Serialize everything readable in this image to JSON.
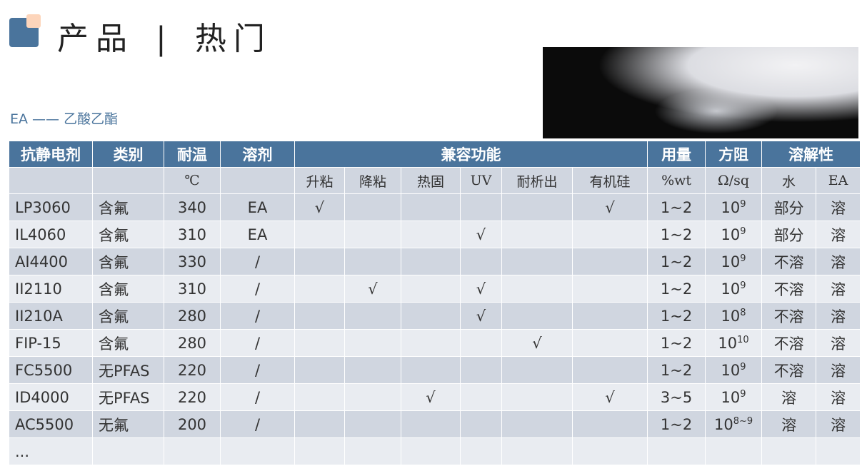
{
  "header": {
    "title_left": "产品",
    "separator": "|",
    "title_right": "热门",
    "note": "EA —— 乙酸乙酯"
  },
  "colors": {
    "accent": "#4a749c",
    "accent_light": "#fdd5bb"
  },
  "table": {
    "headers": [
      "抗静电剂",
      "类别",
      "耐温",
      "溶剂",
      "兼容功能",
      "用量",
      "方阻",
      "溶解性"
    ],
    "subheaders": [
      "",
      "",
      "℃",
      "",
      "升粘",
      "降粘",
      "热固",
      "UV",
      "耐析出",
      "有机硅",
      "%wt",
      "Ω/sq",
      "水",
      "EA"
    ],
    "rows": [
      [
        "LP3060",
        "含氟",
        "340",
        "EA",
        "√",
        "",
        "",
        "",
        "",
        "√",
        "1~2",
        "10",
        "9",
        "部分",
        "溶"
      ],
      [
        "IL4060",
        "含氟",
        "310",
        "EA",
        "",
        "",
        "",
        "√",
        "",
        "",
        "1~2",
        "10",
        "9",
        "部分",
        "溶"
      ],
      [
        "AI4400",
        "含氟",
        "330",
        "/",
        "",
        "",
        "",
        "",
        "",
        "",
        "1~2",
        "10",
        "9",
        "不溶",
        "溶"
      ],
      [
        "II2110",
        "含氟",
        "310",
        "/",
        "",
        "√",
        "",
        "√",
        "",
        "",
        "1~2",
        "10",
        "9",
        "不溶",
        "溶"
      ],
      [
        "II210A",
        "含氟",
        "280",
        "/",
        "",
        "",
        "",
        "√",
        "",
        "",
        "1~2",
        "10",
        "8",
        "不溶",
        "溶"
      ],
      [
        "FIP-15",
        "含氟",
        "280",
        "/",
        "",
        "",
        "",
        "",
        "√",
        "",
        "1~2",
        "10",
        "10",
        "不溶",
        "溶"
      ],
      [
        "FC5500",
        "无PFAS",
        "220",
        "/",
        "",
        "",
        "",
        "",
        "",
        "",
        "1~2",
        "10",
        "9",
        "不溶",
        "溶"
      ],
      [
        "ID4000",
        "无PFAS",
        "220",
        "/",
        "",
        "",
        "√",
        "",
        "",
        "√",
        "3~5",
        "10",
        "9",
        "溶",
        "溶"
      ],
      [
        "AC5500",
        "无氟",
        "200",
        "/",
        "",
        "",
        "",
        "",
        "",
        "",
        "1~2",
        "10",
        "8~9",
        "溶",
        "溶"
      ],
      [
        "...",
        "",
        "",
        "",
        "",
        "",
        "",
        "",
        "",
        "",
        "",
        "",
        "",
        "",
        ""
      ]
    ]
  }
}
